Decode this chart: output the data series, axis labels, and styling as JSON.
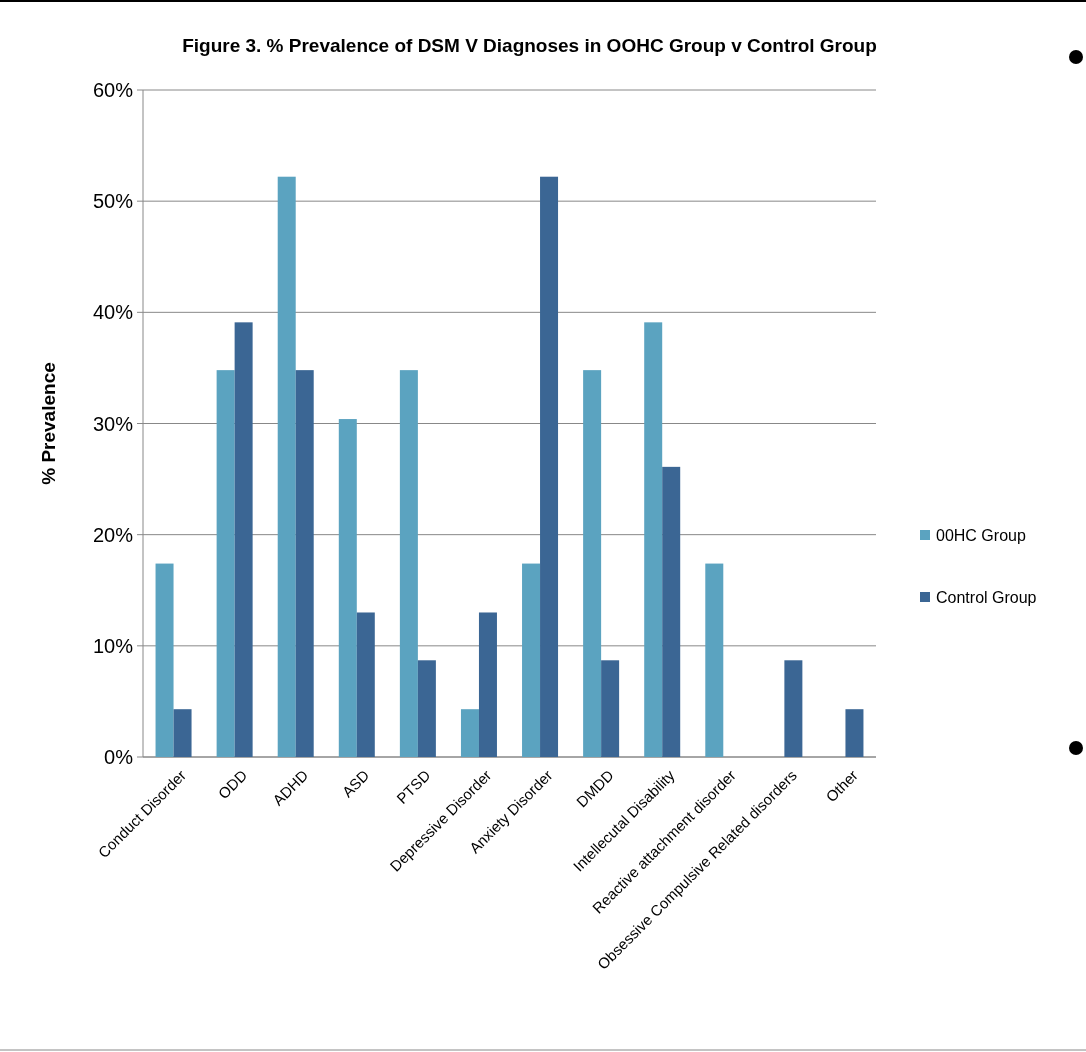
{
  "chart_data": {
    "type": "bar",
    "title": "Figure 3. % Prevalence of DSM V Diagnoses in OOHC Group v Control Group",
    "ylabel": "% Prevalence",
    "categories": [
      "Conduct Disorder",
      "ODD",
      "ADHD",
      "ASD",
      "PTSD",
      "Depressive Disorder",
      "Anxiety Disorder",
      "DMDD",
      "Intellecutal Disability",
      "Reactive attachment disorder",
      "Obsessive Compulsive Related disorders",
      "Other"
    ],
    "series": [
      {
        "name": "00HC Group",
        "color": "#5ba3c0",
        "values": [
          17.4,
          34.8,
          52.2,
          30.4,
          34.8,
          4.3,
          17.4,
          34.8,
          39.1,
          17.4,
          0,
          0
        ]
      },
      {
        "name": "Control Group",
        "color": "#3b6694",
        "values": [
          4.3,
          39.1,
          34.8,
          13.0,
          8.7,
          13.0,
          52.2,
          8.7,
          26.1,
          0,
          8.7,
          4.3
        ]
      }
    ],
    "ylim": [
      0,
      60
    ],
    "yticks": [
      {
        "value": 0,
        "label": "0%"
      },
      {
        "value": 10,
        "label": "10%"
      },
      {
        "value": 20,
        "label": "20%"
      },
      {
        "value": 30,
        "label": "30%"
      },
      {
        "value": 40,
        "label": "40%"
      },
      {
        "value": 50,
        "label": "50%"
      },
      {
        "value": 60,
        "label": "60%"
      }
    ],
    "grid": "y",
    "legend": "right"
  }
}
